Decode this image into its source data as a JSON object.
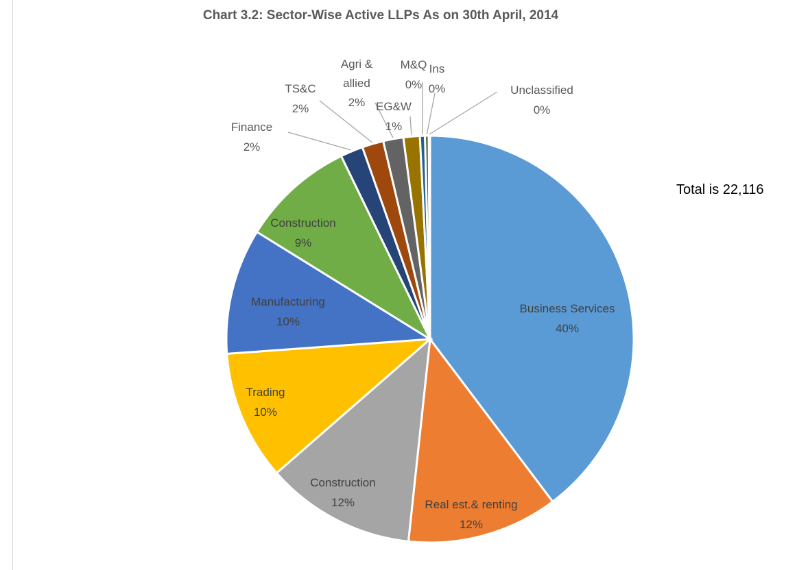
{
  "chart_data": {
    "type": "pie",
    "title": "Chart 3.2: Sector-Wise Active LLPs As on 30th April, 2014",
    "annotation": "Total is 22,116",
    "categories": [
      "Business Services",
      "Real est.& renting",
      "Construction",
      "Trading",
      "Manufacturing",
      "Construction",
      "Finance",
      "TS&C",
      "Agri & allied",
      "EG&W",
      "M&Q",
      "Ins",
      "Unclassified"
    ],
    "values": [
      39.8,
      12.0,
      11.9,
      10.3,
      10.0,
      9.0,
      1.8,
      1.7,
      1.6,
      1.3,
      0.4,
      0.3,
      0.1
    ],
    "value_labels": [
      "40%",
      "12%",
      "12%",
      "10%",
      "10%",
      "9%",
      "2%",
      "2%",
      "2%",
      "1%",
      "0%",
      "0%",
      "0%"
    ],
    "colors": [
      "#5b9bd5",
      "#ed7d31",
      "#a5a5a5",
      "#ffc000",
      "#4472c4",
      "#70ad47",
      "#264478",
      "#9e480e",
      "#636363",
      "#997300",
      "#255e91",
      "#43682b",
      "#698ed0"
    ]
  }
}
